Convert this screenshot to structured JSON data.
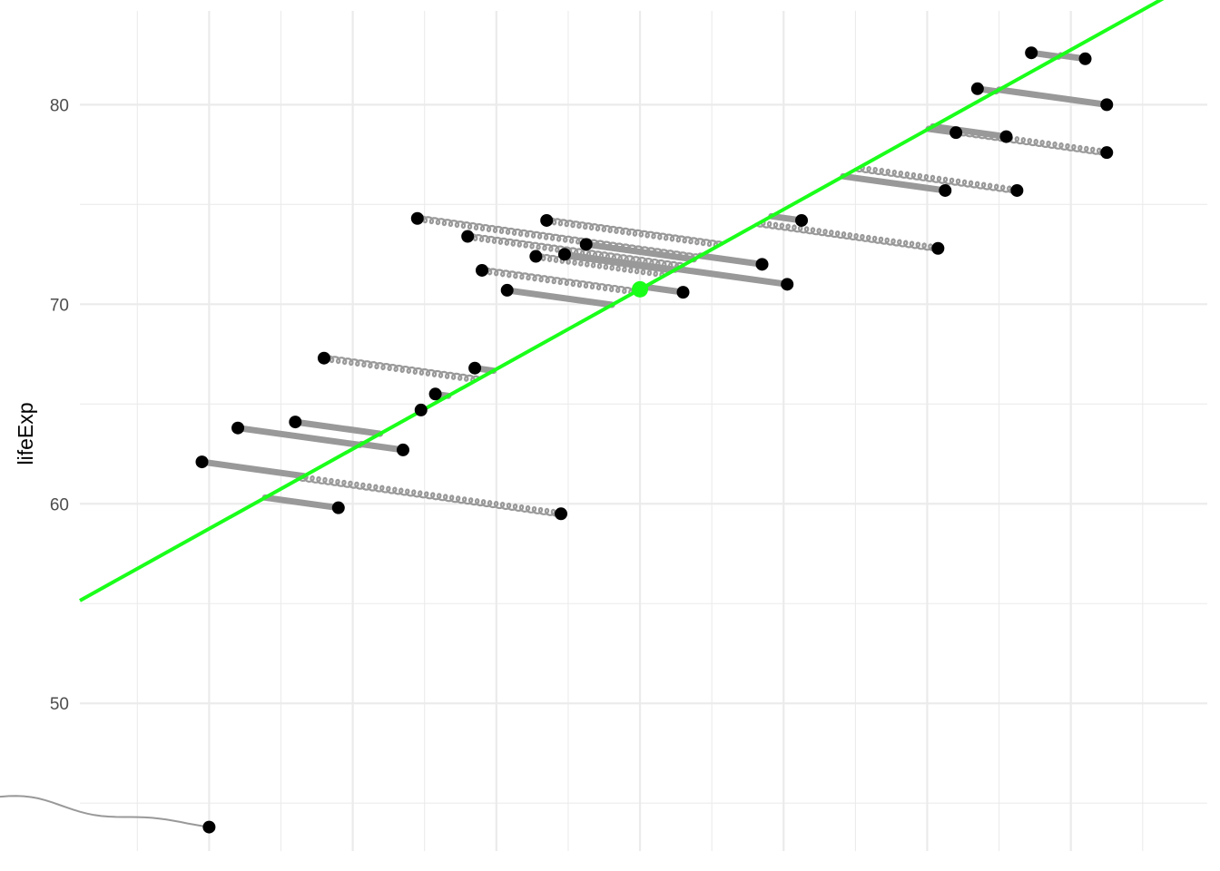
{
  "chart_data": {
    "type": "scatter",
    "title": "",
    "xlabel": "",
    "ylabel": "lifeExp",
    "x_ticks": [],
    "y_ticks": [
      50,
      60,
      70,
      80
    ],
    "ylim": [
      42.6,
      84.7
    ],
    "grid": true,
    "legend": "none",
    "regression_line": {
      "intercept": 70.75,
      "slope": 2.0,
      "color": "#1aff1a"
    },
    "centroid": {
      "x": 0.0,
      "y": 70.75,
      "color": "#1aff1a"
    },
    "point_color": "#000000",
    "spring_color": "#999999",
    "points": [
      {
        "x": -6.0,
        "y": 43.8
      },
      {
        "x": -6.1,
        "y": 62.1
      },
      {
        "x": -5.6,
        "y": 63.8
      },
      {
        "x": -4.8,
        "y": 64.1
      },
      {
        "x": -4.4,
        "y": 67.3
      },
      {
        "x": -4.2,
        "y": 59.8
      },
      {
        "x": -3.3,
        "y": 62.7
      },
      {
        "x": -3.1,
        "y": 74.3
      },
      {
        "x": -3.05,
        "y": 64.7
      },
      {
        "x": -2.85,
        "y": 65.5
      },
      {
        "x": -2.4,
        "y": 73.4
      },
      {
        "x": -2.3,
        "y": 66.8
      },
      {
        "x": -2.2,
        "y": 71.7
      },
      {
        "x": -1.85,
        "y": 70.7
      },
      {
        "x": -1.45,
        "y": 72.4
      },
      {
        "x": -1.3,
        "y": 74.2
      },
      {
        "x": -1.1,
        "y": 59.5
      },
      {
        "x": -1.05,
        "y": 72.5
      },
      {
        "x": -0.75,
        "y": 73.0
      },
      {
        "x": 0.6,
        "y": 70.6
      },
      {
        "x": 1.7,
        "y": 72.0
      },
      {
        "x": 2.05,
        "y": 71.0
      },
      {
        "x": 2.25,
        "y": 74.2
      },
      {
        "x": 4.15,
        "y": 72.8
      },
      {
        "x": 4.25,
        "y": 75.7
      },
      {
        "x": 4.4,
        "y": 78.6
      },
      {
        "x": 4.7,
        "y": 80.8
      },
      {
        "x": 5.1,
        "y": 78.4
      },
      {
        "x": 5.25,
        "y": 75.7
      },
      {
        "x": 5.45,
        "y": 82.6
      },
      {
        "x": 6.2,
        "y": 82.3
      },
      {
        "x": 6.5,
        "y": 80.0
      },
      {
        "x": 6.5,
        "y": 77.6
      }
    ]
  }
}
